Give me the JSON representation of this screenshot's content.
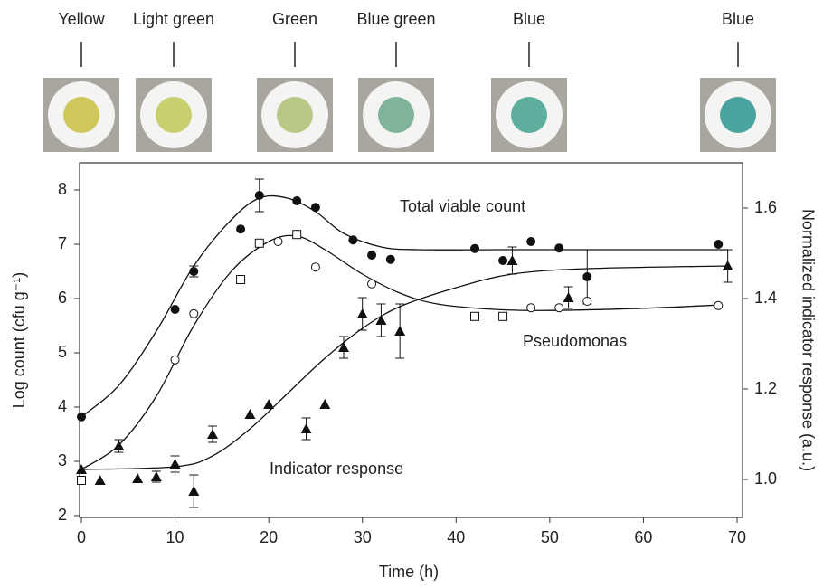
{
  "chart_data": {
    "type": "scatter",
    "swatches": [
      {
        "label": "Yellow",
        "color": "#cfc75a"
      },
      {
        "label": "Light green",
        "color": "#c9cf6e"
      },
      {
        "label": "Green",
        "color": "#b7c887"
      },
      {
        "label": "Blue green",
        "color": "#7fb49a"
      },
      {
        "label": "Blue",
        "color": "#5eae9f"
      },
      {
        "label": "Blue",
        "color": "#4aa39f"
      }
    ],
    "x_label": "Time (h)",
    "y_label": "Log count (cfu g⁻¹)",
    "y2_label": "Normalized indicator response (a.u.)",
    "xlim": [
      0,
      70
    ],
    "xticks": [
      0,
      10,
      20,
      30,
      40,
      50,
      60,
      70
    ],
    "ylim": [
      2,
      8.5
    ],
    "yticks": [
      2,
      3,
      4,
      5,
      6,
      7,
      8
    ],
    "y2lim": [
      0.92,
      1.7
    ],
    "y2ticks": [
      {
        "value": 1,
        "label": "1.0"
      },
      1.2,
      1.4,
      1.6
    ],
    "annotations": [
      "Total viable count",
      "Pseudomonas",
      "Indicator response"
    ],
    "series": [
      {
        "name": "Total viable count",
        "axis": "y",
        "color": "#111",
        "marker": "filled-circle",
        "x": [
          0,
          10,
          12,
          17,
          19,
          23,
          25,
          29,
          31,
          33,
          42,
          45,
          48,
          51,
          54,
          68
        ],
        "values": [
          3.82,
          5.8,
          6.5,
          7.28,
          7.9,
          7.8,
          7.68,
          7.08,
          6.8,
          6.72,
          6.92,
          6.7,
          7.05,
          6.93,
          6.4,
          7.0
        ],
        "errors": [
          null,
          null,
          0.1,
          null,
          0.3,
          null,
          null,
          null,
          null,
          null,
          null,
          null,
          null,
          null,
          0.5,
          null
        ],
        "fit": {
          "x": [
            0,
            4,
            8,
            12,
            16,
            19,
            22,
            25,
            28,
            32,
            36,
            45,
            55,
            69
          ],
          "values": [
            3.82,
            4.4,
            5.4,
            6.6,
            7.45,
            7.85,
            7.85,
            7.6,
            7.2,
            6.95,
            6.9,
            6.9,
            6.9,
            6.9
          ]
        }
      },
      {
        "name": "Pseudomonas",
        "axis": "y",
        "color": "#111",
        "marker": "open",
        "markers": [
          "square",
          "circle",
          "circle",
          "square",
          "square",
          "circle",
          "square",
          "circle",
          "circle",
          "square",
          "square",
          "circle",
          "circle",
          "circle",
          "circle"
        ],
        "x": [
          0,
          10,
          12,
          17,
          19,
          21,
          23,
          25,
          31,
          42,
          45,
          48,
          51,
          54,
          68
        ],
        "values": [
          2.65,
          4.87,
          5.72,
          6.35,
          7.02,
          7.05,
          7.18,
          6.58,
          6.27,
          5.67,
          5.67,
          5.83,
          5.83,
          5.95,
          5.87
        ],
        "fit": {
          "x": [
            0,
            4,
            8,
            12,
            16,
            20,
            23,
            26,
            30,
            34,
            38,
            44,
            50,
            60,
            68
          ],
          "values": [
            2.85,
            3.3,
            4.2,
            5.5,
            6.5,
            7.05,
            7.15,
            6.9,
            6.45,
            6.1,
            5.9,
            5.8,
            5.78,
            5.82,
            5.88
          ]
        }
      },
      {
        "name": "Indicator response",
        "axis": "y2",
        "color": "#111",
        "marker": "triangle",
        "x": [
          0,
          2,
          4,
          6,
          8,
          10,
          12,
          14,
          18,
          20,
          24,
          26,
          28,
          30,
          32,
          34,
          46,
          52,
          69
        ],
        "values": [
          1.022,
          0.998,
          1.074,
          1.002,
          1.006,
          1.034,
          0.974,
          1.1,
          1.144,
          1.166,
          1.112,
          1.166,
          1.292,
          1.366,
          1.352,
          1.328,
          1.484,
          1.402,
          1.472
        ],
        "errors": [
          null,
          null,
          0.014,
          null,
          0.012,
          0.018,
          0.036,
          0.018,
          null,
          null,
          0.024,
          null,
          0.024,
          0.036,
          0.036,
          0.06,
          0.03,
          0.024,
          0.036
        ],
        "fit": {
          "x": [
            0,
            10,
            14,
            18,
            22,
            26,
            30,
            34,
            40,
            46,
            54,
            69
          ],
          "values": [
            1.022,
            1.028,
            1.052,
            1.112,
            1.19,
            1.268,
            1.334,
            1.382,
            1.424,
            1.454,
            1.466,
            1.472
          ]
        }
      }
    ]
  }
}
